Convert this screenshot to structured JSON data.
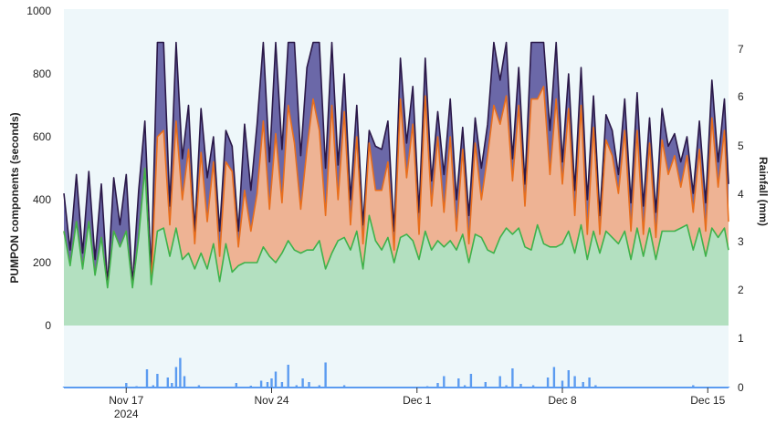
{
  "chart_data": {
    "type": "area",
    "title": "",
    "xlabel": "",
    "ylabel": "PUMPON components (seconds)",
    "y2label": "Rainfall (mm)",
    "ylim": [
      0,
      1000
    ],
    "y2lim": [
      0,
      7.5
    ],
    "xlim": [
      0,
      32
    ],
    "grid": false,
    "legend": "none",
    "y_ticks": [
      "1000",
      "800",
      "600",
      "400",
      "200",
      "0"
    ],
    "y2_ticks": [
      "7",
      "6",
      "5",
      "4",
      "3",
      "2",
      "1",
      "0"
    ],
    "x_ticks": [
      {
        "label": "Nov 17",
        "sub": "2024",
        "x": 3
      },
      {
        "label": "Nov 24",
        "sub": "",
        "x": 10
      },
      {
        "label": "Dec 1",
        "sub": "",
        "x": 17
      },
      {
        "label": "Dec 8",
        "sub": "",
        "x": 24
      },
      {
        "label": "Dec 15",
        "sub": "",
        "x": 31
      }
    ],
    "series": [
      {
        "color": "#6b68a8",
        "line_color": "#2a1848",
        "x": [
          0,
          0.3,
          0.6,
          0.9,
          1.2,
          1.5,
          1.8,
          2.1,
          2.4,
          2.7,
          3.0,
          3.3,
          3.6,
          3.9,
          4.2,
          4.5,
          4.8,
          5.1,
          5.4,
          5.7,
          6.0,
          6.3,
          6.6,
          6.9,
          7.2,
          7.5,
          7.8,
          8.1,
          8.4,
          8.7,
          9.0,
          9.3,
          9.6,
          9.9,
          10.2,
          10.5,
          10.8,
          11.1,
          11.4,
          11.7,
          12.0,
          12.3,
          12.6,
          12.9,
          13.2,
          13.5,
          13.8,
          14.1,
          14.4,
          14.7,
          15.0,
          15.3,
          15.6,
          15.9,
          16.2,
          16.5,
          16.8,
          17.1,
          17.4,
          17.7,
          18.0,
          18.3,
          18.6,
          18.9,
          19.2,
          19.5,
          19.8,
          20.1,
          20.4,
          20.7,
          21.0,
          21.3,
          21.6,
          21.9,
          22.2,
          22.5,
          22.8,
          23.1,
          23.4,
          23.7,
          24.0,
          24.3,
          24.6,
          24.9,
          25.2,
          25.5,
          25.8,
          26.1,
          26.4,
          26.7,
          27.0,
          27.3,
          27.6,
          27.9,
          28.2,
          28.5,
          28.8,
          29.1,
          29.4,
          29.7,
          30.0,
          30.3,
          30.6,
          30.9,
          31.2,
          31.5,
          31.8,
          32.0
        ],
        "values": [
          420,
          240,
          480,
          230,
          490,
          210,
          450,
          130,
          470,
          320,
          480,
          130,
          430,
          650,
          170,
          900,
          900,
          380,
          900,
          530,
          700,
          300,
          690,
          470,
          600,
          300,
          620,
          570,
          300,
          640,
          430,
          640,
          900,
          520,
          900,
          560,
          900,
          900,
          540,
          820,
          900,
          900,
          500,
          900,
          510,
          800,
          400,
          700,
          320,
          620,
          570,
          560,
          650,
          300,
          850,
          580,
          760,
          360,
          850,
          460,
          680,
          480,
          720,
          400,
          630,
          350,
          660,
          500,
          640,
          900,
          780,
          900,
          530,
          820,
          450,
          900,
          900,
          900,
          620,
          900,
          520,
          800,
          430,
          820,
          400,
          730,
          350,
          670,
          620,
          480,
          720,
          390,
          740,
          380,
          660,
          360,
          690,
          570,
          610,
          520,
          600,
          420,
          650,
          390,
          780,
          520,
          720,
          450
        ],
        "stack": [
          420,
          240,
          480,
          230,
          490,
          210,
          450,
          130,
          470,
          320,
          480,
          130,
          430,
          650,
          170,
          900,
          900,
          380,
          900,
          530,
          700,
          300,
          690,
          470,
          600,
          300,
          620,
          570,
          300,
          640,
          430,
          640,
          900,
          520,
          900,
          560,
          900,
          900,
          540,
          820,
          900,
          900,
          500,
          900,
          510,
          800,
          400,
          700,
          320,
          620,
          570,
          560,
          650,
          300,
          850,
          580,
          760,
          360,
          850,
          460,
          680,
          480,
          720,
          400,
          630,
          350,
          660,
          500,
          640,
          900,
          780,
          900,
          530,
          820,
          450,
          900,
          900,
          900,
          620,
          900,
          520,
          800,
          430,
          820,
          400,
          730,
          350,
          670,
          620,
          480,
          720,
          390,
          740,
          380,
          660,
          360,
          690,
          570,
          610,
          520,
          600,
          420,
          650,
          390,
          780,
          520,
          720,
          450
        ]
      },
      {
        "color": "#eeb394",
        "line_color": "#e86e1c",
        "x": [
          0,
          0.3,
          0.6,
          0.9,
          1.2,
          1.5,
          1.8,
          2.1,
          2.4,
          2.7,
          3.0,
          3.3,
          3.6,
          3.9,
          4.2,
          4.5,
          4.8,
          5.1,
          5.4,
          5.7,
          6.0,
          6.3,
          6.6,
          6.9,
          7.2,
          7.5,
          7.8,
          8.1,
          8.4,
          8.7,
          9.0,
          9.3,
          9.6,
          9.9,
          10.2,
          10.5,
          10.8,
          11.1,
          11.4,
          11.7,
          12.0,
          12.3,
          12.6,
          12.9,
          13.2,
          13.5,
          13.8,
          14.1,
          14.4,
          14.7,
          15.0,
          15.3,
          15.6,
          15.9,
          16.2,
          16.5,
          16.8,
          17.1,
          17.4,
          17.7,
          18.0,
          18.3,
          18.6,
          18.9,
          19.2,
          19.5,
          19.8,
          20.1,
          20.4,
          20.7,
          21.0,
          21.3,
          21.6,
          21.9,
          22.2,
          22.5,
          22.8,
          23.1,
          23.4,
          23.7,
          24.0,
          24.3,
          24.6,
          24.9,
          25.2,
          25.5,
          25.8,
          26.1,
          26.4,
          26.7,
          27.0,
          27.3,
          27.6,
          27.9,
          28.2,
          28.5,
          28.8,
          29.1,
          29.4,
          29.7,
          30.0,
          30.3,
          30.6,
          30.9,
          31.2,
          31.5,
          31.8,
          32.0
        ],
        "values": [
          0,
          0,
          0,
          0,
          0,
          0,
          0,
          0,
          0,
          0,
          0,
          0,
          0,
          0,
          0,
          300,
          310,
          100,
          340,
          190,
          330,
          80,
          320,
          150,
          260,
          80,
          260,
          320,
          60,
          230,
          100,
          220,
          400,
          150,
          410,
          160,
          430,
          340,
          140,
          320,
          480,
          350,
          170,
          470,
          130,
          400,
          80,
          300,
          80,
          230,
          160,
          190,
          240,
          40,
          440,
          180,
          370,
          80,
          430,
          140,
          330,
          110,
          330,
          60,
          270,
          60,
          290,
          120,
          300,
          470,
          360,
          420,
          170,
          390,
          130,
          480,
          400,
          500,
          230,
          470,
          190,
          390,
          120,
          380,
          80,
          330,
          60,
          290,
          260,
          160,
          320,
          90,
          310,
          70,
          270,
          70,
          290,
          180,
          240,
          130,
          220,
          120,
          250,
          80,
          350,
          160,
          310,
          90
        ],
        "stack": [
          300,
          190,
          330,
          180,
          330,
          160,
          280,
          120,
          300,
          250,
          300,
          120,
          280,
          500,
          130,
          600,
          620,
          320,
          650,
          400,
          560,
          260,
          550,
          330,
          520,
          220,
          520,
          490,
          250,
          430,
          300,
          420,
          650,
          370,
          610,
          390,
          700,
          580,
          370,
          560,
          720,
          620,
          350,
          700,
          400,
          680,
          320,
          600,
          260,
          580,
          430,
          430,
          520,
          240,
          720,
          470,
          640,
          290,
          730,
          380,
          600,
          360,
          600,
          300,
          560,
          260,
          580,
          400,
          540,
          700,
          640,
          730,
          460,
          700,
          380,
          720,
          720,
          760,
          480,
          720,
          450,
          690,
          350,
          700,
          290,
          630,
          290,
          590,
          540,
          420,
          620,
          300,
          620,
          290,
          580,
          280,
          590,
          480,
          540,
          440,
          540,
          360,
          560,
          300,
          660,
          440,
          620,
          330
        ]
      },
      {
        "color": "#b3e0c0",
        "line_color": "#3eb24a",
        "x": [
          0,
          0.3,
          0.6,
          0.9,
          1.2,
          1.5,
          1.8,
          2.1,
          2.4,
          2.7,
          3.0,
          3.3,
          3.6,
          3.9,
          4.2,
          4.5,
          4.8,
          5.1,
          5.4,
          5.7,
          6.0,
          6.3,
          6.6,
          6.9,
          7.2,
          7.5,
          7.8,
          8.1,
          8.4,
          8.7,
          9.0,
          9.3,
          9.6,
          9.9,
          10.2,
          10.5,
          10.8,
          11.1,
          11.4,
          11.7,
          12.0,
          12.3,
          12.6,
          12.9,
          13.2,
          13.5,
          13.8,
          14.1,
          14.4,
          14.7,
          15.0,
          15.3,
          15.6,
          15.9,
          16.2,
          16.5,
          16.8,
          17.1,
          17.4,
          17.7,
          18.0,
          18.3,
          18.6,
          18.9,
          19.2,
          19.5,
          19.8,
          20.1,
          20.4,
          20.7,
          21.0,
          21.3,
          21.6,
          21.9,
          22.2,
          22.5,
          22.8,
          23.1,
          23.4,
          23.7,
          24.0,
          24.3,
          24.6,
          24.9,
          25.2,
          25.5,
          25.8,
          26.1,
          26.4,
          26.7,
          27.0,
          27.3,
          27.6,
          27.9,
          28.2,
          28.5,
          28.8,
          29.1,
          29.4,
          29.7,
          30.0,
          30.3,
          30.6,
          30.9,
          31.2,
          31.5,
          31.8,
          32.0
        ],
        "values": [
          300,
          190,
          330,
          180,
          330,
          160,
          280,
          120,
          300,
          250,
          300,
          120,
          280,
          500,
          130,
          300,
          310,
          220,
          310,
          210,
          230,
          180,
          230,
          180,
          260,
          140,
          260,
          170,
          190,
          200,
          200,
          200,
          250,
          220,
          200,
          230,
          270,
          240,
          230,
          240,
          240,
          270,
          180,
          230,
          270,
          280,
          240,
          300,
          180,
          350,
          270,
          240,
          280,
          200,
          280,
          290,
          270,
          210,
          300,
          240,
          270,
          250,
          270,
          240,
          290,
          200,
          290,
          280,
          240,
          230,
          280,
          310,
          290,
          310,
          250,
          240,
          320,
          260,
          250,
          250,
          260,
          300,
          230,
          320,
          210,
          300,
          230,
          300,
          280,
          260,
          300,
          210,
          310,
          220,
          310,
          210,
          300,
          300,
          300,
          310,
          320,
          240,
          310,
          220,
          310,
          280,
          310,
          240
        ],
        "stack": [
          300,
          190,
          330,
          180,
          330,
          160,
          280,
          120,
          300,
          250,
          300,
          120,
          280,
          500,
          130,
          300,
          310,
          220,
          310,
          210,
          230,
          180,
          230,
          180,
          260,
          140,
          260,
          170,
          190,
          200,
          200,
          200,
          250,
          220,
          200,
          230,
          270,
          240,
          230,
          240,
          240,
          270,
          180,
          230,
          270,
          280,
          240,
          300,
          180,
          350,
          270,
          240,
          280,
          200,
          280,
          290,
          270,
          210,
          300,
          240,
          270,
          250,
          270,
          240,
          290,
          200,
          290,
          280,
          240,
          230,
          280,
          310,
          290,
          310,
          250,
          240,
          320,
          260,
          250,
          250,
          260,
          300,
          230,
          320,
          210,
          300,
          230,
          300,
          280,
          260,
          300,
          210,
          310,
          220,
          310,
          210,
          300,
          300,
          300,
          310,
          320,
          240,
          310,
          220,
          310,
          280,
          310,
          240
        ]
      }
    ],
    "rainfall": {
      "color": "#5b9bf0",
      "axis": "y2",
      "ylim": [
        0,
        1.1
      ],
      "x": [
        0,
        0.5,
        1,
        1.5,
        2,
        2.5,
        2.8,
        3.0,
        3.2,
        3.5,
        3.8,
        4.0,
        4.3,
        4.5,
        4.8,
        5.0,
        5.2,
        5.4,
        5.6,
        5.8,
        6.0,
        6.5,
        7.0,
        7.5,
        8.0,
        8.3,
        8.6,
        9.0,
        9.5,
        9.8,
        10.0,
        10.2,
        10.5,
        10.8,
        11.0,
        11.2,
        11.5,
        11.8,
        12.0,
        12.3,
        12.6,
        13.0,
        13.5,
        14.0,
        14.5,
        15.0,
        15.5,
        16.0,
        16.5,
        17.0,
        17.5,
        18.0,
        18.3,
        18.6,
        19.0,
        19.3,
        19.6,
        20.0,
        20.3,
        20.6,
        21.0,
        21.3,
        21.6,
        22.0,
        22.3,
        22.6,
        23.0,
        23.3,
        23.6,
        24.0,
        24.3,
        24.6,
        25.0,
        25.3,
        25.6,
        26.0,
        26.5,
        27.0,
        27.5,
        28.0,
        28.5,
        29.0,
        29.5,
        30.0,
        30.3,
        30.6,
        31.0,
        31.5,
        32.0
      ],
      "values": [
        0.02,
        0,
        0.01,
        0,
        0,
        0,
        0.02,
        0.1,
        0.01,
        0.03,
        0.01,
        0.4,
        0.05,
        0.3,
        0.02,
        0.22,
        0.1,
        0.45,
        0.65,
        0.25,
        0.02,
        0.05,
        0.01,
        0.02,
        0.02,
        0.1,
        0.02,
        0.04,
        0.15,
        0.12,
        0.2,
        0.35,
        0.12,
        0.5,
        0.02,
        0.05,
        0.2,
        0.12,
        0.02,
        0.05,
        0.55,
        0.02,
        0.05,
        0.02,
        0.02,
        0.01,
        0.02,
        0.02,
        0.01,
        0.02,
        0.03,
        0.1,
        0.25,
        0.02,
        0.2,
        0.05,
        0.3,
        0.02,
        0.12,
        0.02,
        0.25,
        0.05,
        0.42,
        0.08,
        0.02,
        0.05,
        0.02,
        0.22,
        0.45,
        0.15,
        0.38,
        0.25,
        0.12,
        0.22,
        0.05,
        0.02,
        0.02,
        0.01,
        0.02,
        0.01,
        0.02,
        0.02,
        0.01,
        0.02,
        0.05,
        0.01,
        0.02,
        0.01,
        0.02
      ]
    }
  }
}
